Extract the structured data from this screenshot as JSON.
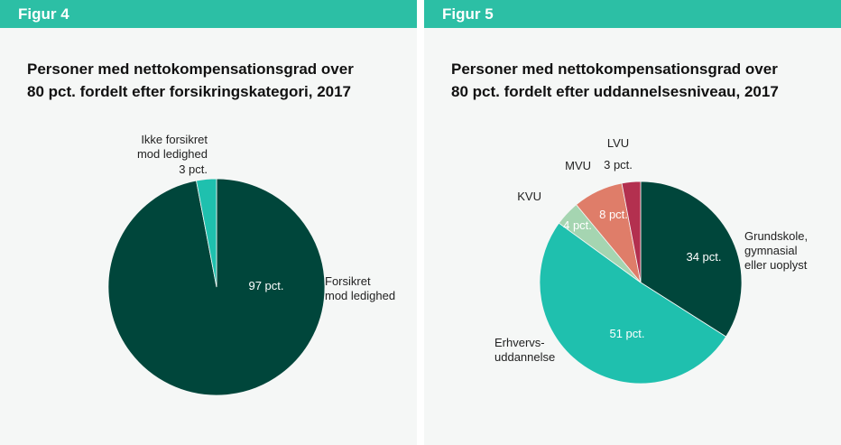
{
  "chart_data": [
    {
      "type": "pie",
      "figure_label": "Figur 4",
      "title": "Personer med nettokompensationsgrad over\n80 pct. fordelt efter forsikringskategori, 2017",
      "categories": [
        "Forsikret\nmod ledighed",
        "Ikke forsikret\nmod ledighed"
      ],
      "values": [
        97,
        3
      ],
      "value_labels": [
        "97 pct.",
        "3 pct."
      ],
      "colors": [
        "#00463b",
        "#1fc0ae"
      ]
    },
    {
      "type": "pie",
      "figure_label": "Figur 5",
      "title": "Personer med nettokompensationsgrad over\n80 pct. fordelt efter uddannelsesniveau, 2017",
      "categories": [
        "Grundskole,\ngymnasial\neller uoplyst",
        "Erhvervs-\nuddannelse",
        "KVU",
        "MVU",
        "LVU"
      ],
      "values": [
        34,
        51,
        4,
        8,
        3
      ],
      "value_labels": [
        "34 pct.",
        "51 pct.",
        "4 pct.",
        "8 pct.",
        "3 pct."
      ],
      "colors": [
        "#00463b",
        "#1fc0ae",
        "#a5d5b1",
        "#df7d69",
        "#b3304f"
      ]
    }
  ]
}
